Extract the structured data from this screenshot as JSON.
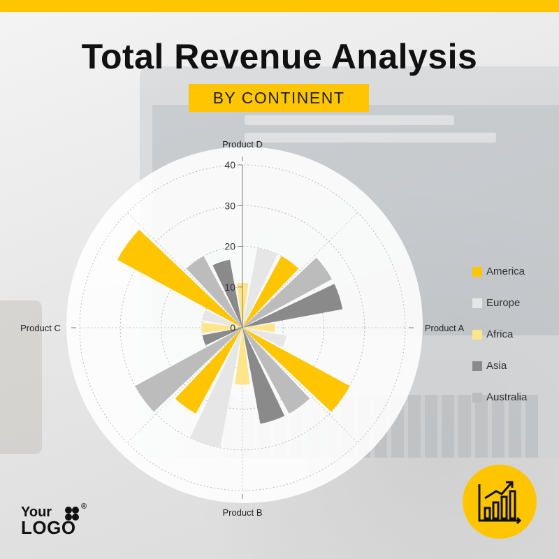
{
  "header": {
    "title": "Total Revenue Analysis",
    "subtitle": "BY CONTINENT"
  },
  "logo": {
    "line1": "Your",
    "line2": "LOGO",
    "mark": "®"
  },
  "icons": {
    "badge": "bar-chart-growth-icon",
    "logo_mark": "four-petal-logo-icon"
  },
  "colors": {
    "accent": "#ffc600",
    "America": "#ffc600",
    "Europe": "#e6e6e6",
    "Africa": "#ffe58a",
    "Asia": "#8a8a8a",
    "Australia": "#bcbcbc"
  },
  "chart_data": {
    "type": "polar-bar",
    "categories": [
      "Product A",
      "Product B",
      "Product C",
      "Product D"
    ],
    "series": [
      {
        "name": "America",
        "values": [
          30,
          24,
          35,
          20
        ]
      },
      {
        "name": "Europe",
        "values": [
          11,
          30,
          10,
          20
        ]
      },
      {
        "name": "Africa",
        "values": [
          8,
          14,
          10,
          11
        ]
      },
      {
        "name": "Asia",
        "values": [
          25,
          24,
          10,
          17
        ]
      },
      {
        "name": "Australia",
        "values": [
          25,
          24,
          30,
          20
        ]
      }
    ],
    "radial_ticks": [
      0,
      10,
      20,
      30,
      40
    ],
    "rmax": 40,
    "grid": true,
    "legend_position": "right"
  }
}
